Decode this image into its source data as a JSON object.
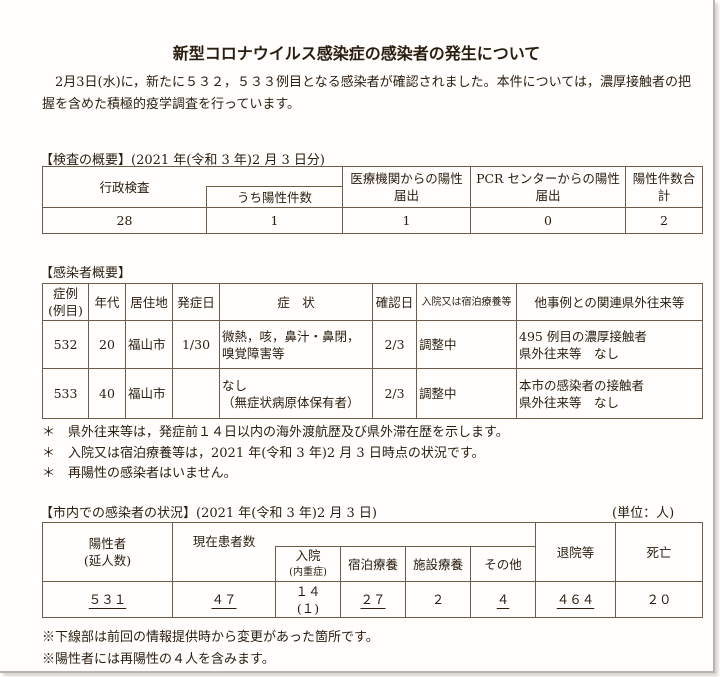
{
  "title": "新型コロナウイルス感染症の感染者の発生について",
  "intro": "　2月3日(水)に，新たに５３２，５３３例目となる感染者が確認されました。本件については，濃厚接触者の把握を含めた積極的疫学調査を行っています。",
  "tests": {
    "heading": "【検査の概要】(2021 年(令和 3 年)2 月 3 日分)",
    "headers": {
      "admin": "行政検査",
      "admin_pos": "うち陽性件数",
      "medical": "医療機関からの陽性届出",
      "pcr": "PCR センターからの陽性届出",
      "total": "陽性件数合　計"
    },
    "values": {
      "admin": "28",
      "admin_pos": "1",
      "medical": "1",
      "pcr": "0",
      "total": "2"
    }
  },
  "cases": {
    "heading": "【感染者概要】",
    "headers": [
      "症例(例目)",
      "年代",
      "居住地",
      "発症日",
      "症　状",
      "確認日",
      "入院又は宿泊療養等",
      "他事例との関連県外往来等"
    ],
    "rows": [
      {
        "case": "532",
        "age": "20",
        "residence": "福山市",
        "onset": "1/30",
        "symptoms": "微熱，咳，鼻汁・鼻閉，嗅覚障害等",
        "confirmed": "2/3",
        "status": "調整中",
        "relation": "495 例目の濃厚接触者",
        "travel": "県外往来等　なし"
      },
      {
        "case": "533",
        "age": "40",
        "residence": "福山市",
        "onset": "",
        "symptoms": "なし",
        "symptoms2": "（無症状病原体保有者）",
        "confirmed": "2/3",
        "status": "調整中",
        "relation": "本市の感染者の接触者",
        "travel": "県外往来等　なし"
      }
    ],
    "notes": [
      "＊　県外往来等は，発症前１４日以内の海外渡航歴及び県外滞在歴を示します。",
      "＊　入院又は宿泊療養等は，2021 年(令和 3 年)2 月 3 日時点の状況です。",
      "＊　再陽性の感染者はいません。"
    ]
  },
  "status": {
    "heading": "【市内での感染者の状況】(2021 年(令和 3 年)2 月 3 日)",
    "unit": "(単位：人)",
    "headers": {
      "positive": "陽性者",
      "positive_sub": "(延人数)",
      "current": "現在患者数",
      "hospital": "入院",
      "hospital_sub": "(内重症)",
      "hotel": "宿泊療養",
      "facility": "施設療養",
      "other": "その他",
      "discharged": "退院等",
      "deaths": "死亡"
    },
    "values": {
      "positive": "５３１",
      "current": "４７",
      "hospital": "１４",
      "hospital_severe": "(１)",
      "hotel": "２７",
      "facility": "２",
      "other": "４",
      "discharged": "４６４",
      "deaths": "２０"
    },
    "notes": [
      "※下線部は前回の情報提供時から変更があった箇所です。",
      "※陽性者には再陽性の４人を含みます。"
    ]
  }
}
